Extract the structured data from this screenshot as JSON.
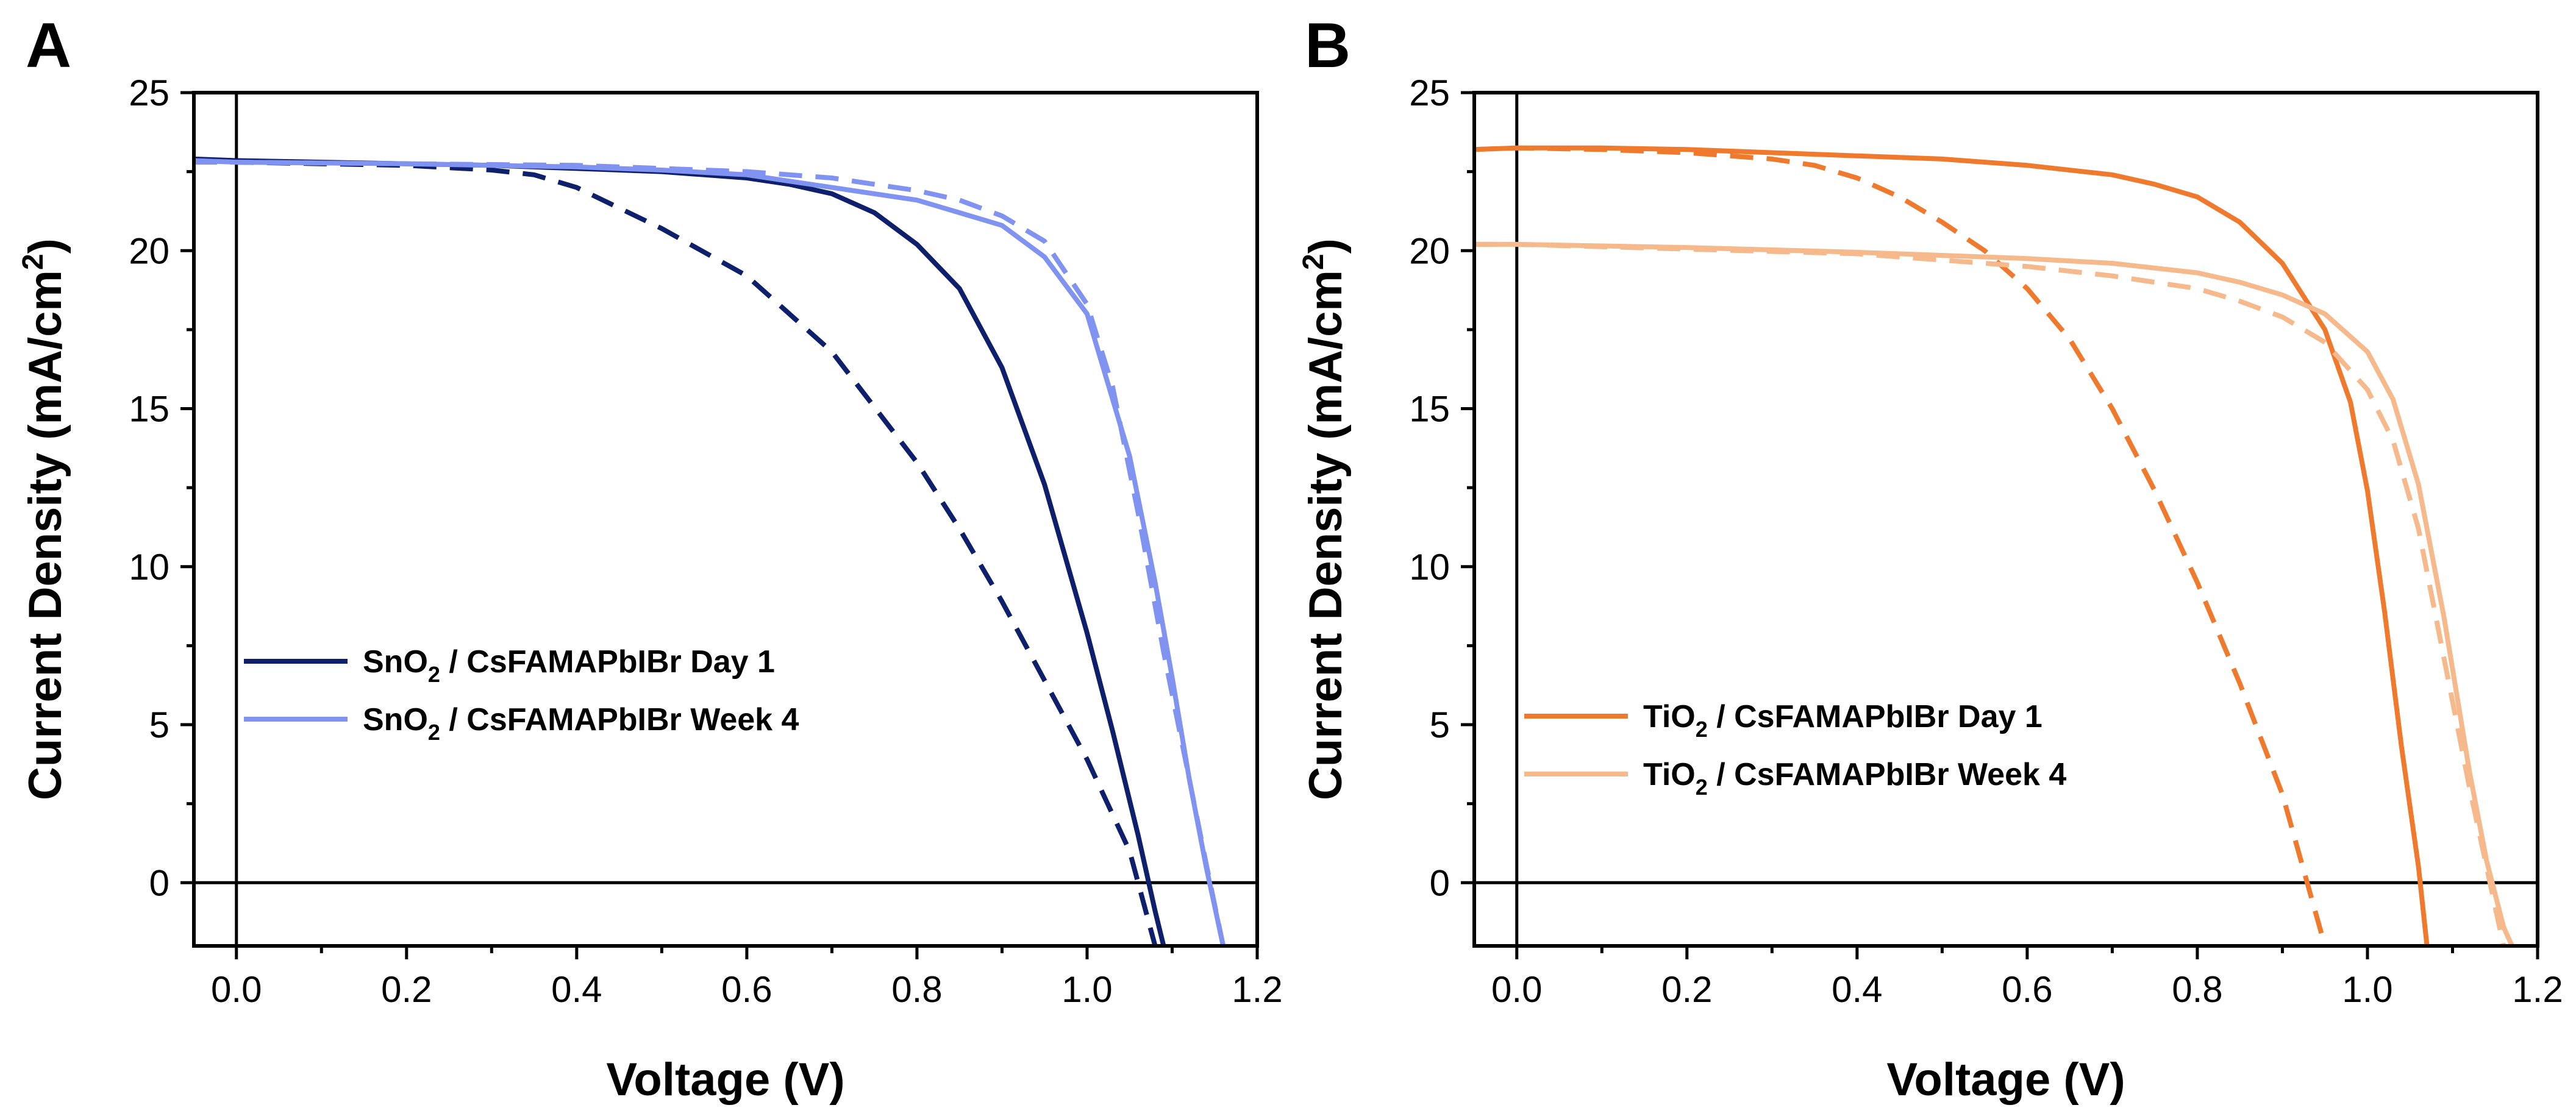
{
  "chart_data": [
    {
      "type": "line",
      "panel_label": "A",
      "xlabel": "Voltage (V)",
      "ylabel": {
        "main": "Current Density (mA/cm",
        "sup": "2",
        "end": ")"
      },
      "xlim": [
        -0.05,
        1.2
      ],
      "ylim": [
        -2,
        25
      ],
      "xticks": [
        "0.0",
        "0.2",
        "0.4",
        "0.6",
        "0.8",
        "1.0",
        "1.2"
      ],
      "yticks": [
        "0",
        "5",
        "10",
        "15",
        "20",
        "25"
      ],
      "legend_position": "lower-left",
      "series": [
        {
          "name": "SnO2 / CsFAMAPbIBr Day 1",
          "label": {
            "pre": "SnO",
            "sub": "2",
            "post": " / CsFAMAPbIBr Day 1"
          },
          "color": "#0e1f6b",
          "style": "solid",
          "x": [
            -0.05,
            0.0,
            0.1,
            0.2,
            0.3,
            0.4,
            0.5,
            0.6,
            0.65,
            0.7,
            0.75,
            0.8,
            0.85,
            0.9,
            0.95,
            1.0,
            1.03,
            1.06,
            1.08,
            1.09
          ],
          "y": [
            22.9,
            22.85,
            22.8,
            22.75,
            22.7,
            22.6,
            22.5,
            22.3,
            22.1,
            21.8,
            21.2,
            20.2,
            18.8,
            16.3,
            12.6,
            7.9,
            4.8,
            1.5,
            -0.9,
            -2.0
          ]
        },
        {
          "name": "SnO2 / CsFAMAPbIBr Day 1 (dashed)",
          "color": "#0e1f6b",
          "style": "dashed",
          "x": [
            -0.05,
            0.0,
            0.1,
            0.2,
            0.3,
            0.35,
            0.4,
            0.5,
            0.6,
            0.7,
            0.8,
            0.85,
            0.9,
            0.95,
            1.0,
            1.05,
            1.08
          ],
          "y": [
            22.85,
            22.8,
            22.75,
            22.7,
            22.55,
            22.4,
            22.0,
            20.7,
            19.2,
            16.8,
            13.3,
            11.2,
            8.9,
            6.4,
            3.9,
            1.0,
            -2.0
          ]
        },
        {
          "name": "SnO2 / CsFAMAPbIBr Week 4",
          "label": {
            "pre": "SnO",
            "sub": "2",
            "post": " / CsFAMAPbIBr Week 4"
          },
          "color": "#8093f1",
          "style": "solid",
          "x": [
            -0.05,
            0.0,
            0.2,
            0.4,
            0.5,
            0.6,
            0.7,
            0.8,
            0.85,
            0.9,
            0.95,
            1.0,
            1.05,
            1.08,
            1.1,
            1.12,
            1.14,
            1.16
          ],
          "y": [
            22.85,
            22.8,
            22.75,
            22.65,
            22.55,
            22.4,
            22.0,
            21.6,
            21.2,
            20.8,
            19.8,
            18.0,
            13.5,
            9.5,
            6.5,
            3.3,
            0.5,
            -2.0
          ]
        },
        {
          "name": "SnO2 / CsFAMAPbIBr Week 4 (dashed)",
          "color": "#8093f1",
          "style": "dashed",
          "x": [
            -0.05,
            0.0,
            0.2,
            0.4,
            0.5,
            0.6,
            0.7,
            0.8,
            0.85,
            0.9,
            0.95,
            1.0,
            1.03,
            1.06,
            1.09,
            1.12,
            1.14,
            1.16
          ],
          "y": [
            22.8,
            22.8,
            22.75,
            22.7,
            22.6,
            22.5,
            22.3,
            21.9,
            21.6,
            21.1,
            20.3,
            18.3,
            15.7,
            11.7,
            7.3,
            3.3,
            0.6,
            -2.0
          ]
        }
      ]
    },
    {
      "type": "line",
      "panel_label": "B",
      "xlabel": "Voltage (V)",
      "ylabel": {
        "main": "Current Density (mA/cm",
        "sup": "2",
        "end": ")"
      },
      "xlim": [
        -0.05,
        1.2
      ],
      "ylim": [
        -2,
        25
      ],
      "xticks": [
        "0.0",
        "0.2",
        "0.4",
        "0.6",
        "0.8",
        "1.0",
        "1.2"
      ],
      "yticks": [
        "0",
        "5",
        "10",
        "15",
        "20",
        "25"
      ],
      "legend_position": "lower-left",
      "series": [
        {
          "name": "TiO2 / CsFAMAPbIBr Day 1",
          "label": {
            "pre": "TiO",
            "sub": "2",
            "post": " / CsFAMAPbIBr Day 1"
          },
          "color": "#ef7a2e",
          "style": "solid",
          "x": [
            -0.05,
            0.0,
            0.1,
            0.2,
            0.3,
            0.4,
            0.5,
            0.6,
            0.7,
            0.75,
            0.8,
            0.85,
            0.9,
            0.95,
            0.98,
            1.0,
            1.02,
            1.04,
            1.06,
            1.07
          ],
          "y": [
            23.2,
            23.25,
            23.25,
            23.2,
            23.1,
            23.0,
            22.9,
            22.7,
            22.4,
            22.1,
            21.7,
            20.9,
            19.6,
            17.5,
            15.2,
            12.4,
            8.6,
            4.3,
            0.5,
            -2.0
          ]
        },
        {
          "name": "TiO2 / CsFAMAPbIBr Day 1 (dashed)",
          "color": "#ef7a2e",
          "style": "dashed",
          "x": [
            -0.05,
            0.0,
            0.1,
            0.2,
            0.3,
            0.35,
            0.4,
            0.45,
            0.5,
            0.55,
            0.6,
            0.65,
            0.7,
            0.75,
            0.8,
            0.85,
            0.9,
            0.95
          ],
          "y": [
            23.2,
            23.25,
            23.2,
            23.1,
            22.9,
            22.7,
            22.3,
            21.7,
            20.9,
            20.0,
            18.8,
            17.2,
            15.0,
            12.4,
            9.5,
            6.3,
            2.8,
            -2.0
          ]
        },
        {
          "name": "TiO2 / CsFAMAPbIBr Week 4",
          "label": {
            "pre": "TiO",
            "sub": "2",
            "post": " / CsFAMAPbIBr Week 4"
          },
          "color": "#f5b98b",
          "style": "solid",
          "x": [
            -0.05,
            0.0,
            0.2,
            0.4,
            0.5,
            0.6,
            0.7,
            0.8,
            0.85,
            0.9,
            0.95,
            1.0,
            1.03,
            1.06,
            1.09,
            1.12,
            1.14,
            1.16,
            1.17
          ],
          "y": [
            20.2,
            20.2,
            20.1,
            19.95,
            19.85,
            19.75,
            19.6,
            19.3,
            19.0,
            18.6,
            18.0,
            16.8,
            15.3,
            12.6,
            8.4,
            3.5,
            0.7,
            -1.4,
            -2.0
          ]
        },
        {
          "name": "TiO2 / CsFAMAPbIBr Week 4 (dashed)",
          "color": "#f5b98b",
          "style": "dashed",
          "x": [
            -0.05,
            0.0,
            0.2,
            0.4,
            0.5,
            0.6,
            0.7,
            0.8,
            0.85,
            0.9,
            0.95,
            1.0,
            1.03,
            1.06,
            1.09,
            1.12,
            1.14,
            1.16
          ],
          "y": [
            20.2,
            20.2,
            20.05,
            19.9,
            19.7,
            19.5,
            19.2,
            18.8,
            18.4,
            17.9,
            17.1,
            15.6,
            14.0,
            11.2,
            7.1,
            3.0,
            0.5,
            -2.0
          ]
        }
      ]
    }
  ]
}
